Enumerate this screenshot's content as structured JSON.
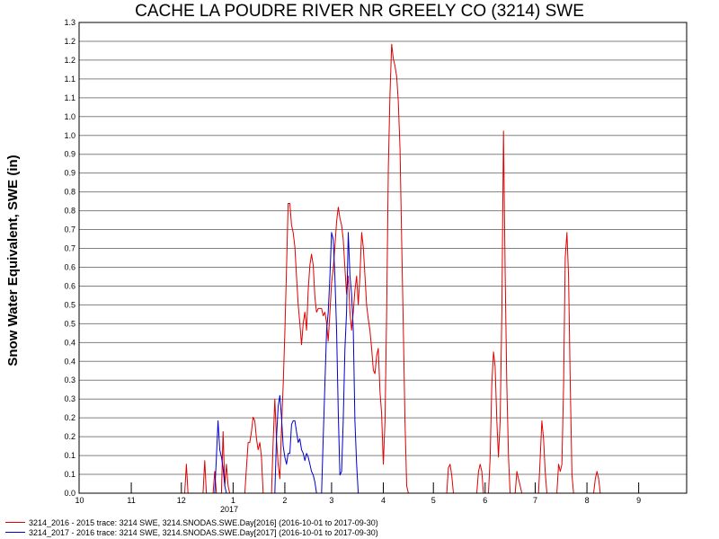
{
  "chart_data": {
    "type": "line",
    "title": "CACHE LA POUDRE RIVER NR GREELY CO (3214) SWE",
    "ylabel": "Snow Water Equivalent, SWE (in)",
    "xlabel": "",
    "x_axis": {
      "tick_labels": [
        "10",
        "11",
        "12",
        "1",
        "2",
        "3",
        "4",
        "5",
        "6",
        "7",
        "8",
        "9"
      ],
      "year_label": "2017",
      "range": [
        "2016-10-01",
        "2017-09-30"
      ]
    },
    "y_axis": {
      "ylim": [
        0,
        1.3
      ],
      "tick_labels": [
        "0.0",
        "0.1",
        "0.1",
        "0.2",
        "0.2",
        "0.3",
        "0.3",
        "0.4",
        "0.4",
        "0.5",
        "0.5",
        "0.6",
        "0.6",
        "0.7",
        "0.7",
        "0.8",
        "0.8",
        "0.9",
        "0.9",
        "1.0",
        "1.0",
        "1.1",
        "1.1",
        "1.2",
        "1.2",
        "1.3"
      ]
    },
    "grid": true,
    "legend_position": "bottom",
    "series": [
      {
        "name": "3214_2016 - 2015 trace: 3214 SWE, 3214.SNODAS.SWE.Day[2016] (2016-10-01 to 2017-09-30)",
        "color": "#e00000",
        "points": [
          [
            0,
            0
          ],
          [
            63,
            0
          ],
          [
            64,
            0.08
          ],
          [
            65,
            0
          ],
          [
            74,
            0
          ],
          [
            75,
            0.09
          ],
          [
            76,
            0
          ],
          [
            80,
            0
          ],
          [
            81,
            0.06
          ],
          [
            82,
            0
          ],
          [
            85,
            0
          ],
          [
            86,
            0.17
          ],
          [
            87,
            0.02
          ],
          [
            88,
            0.08
          ],
          [
            89,
            0.02
          ],
          [
            90,
            0
          ],
          [
            99,
            0
          ],
          [
            100,
            0.07
          ],
          [
            101,
            0.14
          ],
          [
            102,
            0.14
          ],
          [
            103,
            0.17
          ],
          [
            104,
            0.21
          ],
          [
            105,
            0.2
          ],
          [
            106,
            0.15
          ],
          [
            107,
            0.12
          ],
          [
            108,
            0.14
          ],
          [
            109,
            0.1
          ],
          [
            110,
            0
          ],
          [
            115,
            0
          ],
          [
            116,
            0.14
          ],
          [
            117,
            0.26
          ],
          [
            118,
            0.15
          ],
          [
            119,
            0.08
          ],
          [
            120,
            0.04
          ],
          [
            121,
            0.18
          ],
          [
            122,
            0.3
          ],
          [
            123,
            0.44
          ],
          [
            124,
            0.62
          ],
          [
            125,
            0.8
          ],
          [
            126,
            0.8
          ],
          [
            127,
            0.74
          ],
          [
            128,
            0.72
          ],
          [
            129,
            0.68
          ],
          [
            130,
            0.6
          ],
          [
            131,
            0.52
          ],
          [
            132,
            0.47
          ],
          [
            133,
            0.41
          ],
          [
            134,
            0.47
          ],
          [
            135,
            0.5
          ],
          [
            136,
            0.45
          ],
          [
            137,
            0.56
          ],
          [
            138,
            0.63
          ],
          [
            139,
            0.66
          ],
          [
            140,
            0.63
          ],
          [
            141,
            0.54
          ],
          [
            142,
            0.5
          ],
          [
            143,
            0.51
          ],
          [
            144,
            0.51
          ],
          [
            145,
            0.51
          ],
          [
            146,
            0.49
          ],
          [
            147,
            0.5
          ],
          [
            148,
            0.47
          ],
          [
            149,
            0.42
          ],
          [
            150,
            0.5
          ],
          [
            151,
            0.58
          ],
          [
            152,
            0.62
          ],
          [
            153,
            0.68
          ],
          [
            154,
            0.75
          ],
          [
            155,
            0.79
          ],
          [
            156,
            0.76
          ],
          [
            157,
            0.74
          ],
          [
            158,
            0.7
          ],
          [
            159,
            0.62
          ],
          [
            160,
            0.55
          ],
          [
            161,
            0.6
          ],
          [
            162,
            0.5
          ],
          [
            163,
            0.45
          ],
          [
            164,
            0.5
          ],
          [
            165,
            0.56
          ],
          [
            166,
            0.6
          ],
          [
            167,
            0.52
          ],
          [
            168,
            0.6
          ],
          [
            169,
            0.72
          ],
          [
            170,
            0.68
          ],
          [
            171,
            0.6
          ],
          [
            172,
            0.52
          ],
          [
            173,
            0.48
          ],
          [
            174,
            0.45
          ],
          [
            175,
            0.4
          ],
          [
            176,
            0.34
          ],
          [
            177,
            0.33
          ],
          [
            178,
            0.38
          ],
          [
            179,
            0.4
          ],
          [
            180,
            0.28
          ],
          [
            181,
            0.22
          ],
          [
            182,
            0.08
          ],
          [
            183,
            0.2
          ],
          [
            184,
            0.5
          ],
          [
            185,
            0.9
          ],
          [
            186,
            1.1
          ],
          [
            187,
            1.24
          ],
          [
            188,
            1.2
          ],
          [
            189,
            1.18
          ],
          [
            190,
            1.15
          ],
          [
            191,
            1.08
          ],
          [
            192,
            0.95
          ],
          [
            193,
            0.7
          ],
          [
            194,
            0.45
          ],
          [
            195,
            0.2
          ],
          [
            196,
            0.02
          ],
          [
            197,
            0
          ],
          [
            220,
            0
          ],
          [
            221,
            0.07
          ],
          [
            222,
            0.08
          ],
          [
            223,
            0.05
          ],
          [
            224,
            0
          ],
          [
            238,
            0
          ],
          [
            239,
            0.06
          ],
          [
            240,
            0.08
          ],
          [
            241,
            0.06
          ],
          [
            242,
            0
          ],
          [
            245,
            0
          ],
          [
            246,
            0.1
          ],
          [
            247,
            0.3
          ],
          [
            248,
            0.39
          ],
          [
            249,
            0.35
          ],
          [
            250,
            0.2
          ],
          [
            251,
            0.1
          ],
          [
            252,
            0.2
          ],
          [
            253,
            0.5
          ],
          [
            254,
            1.0
          ],
          [
            255,
            0.6
          ],
          [
            256,
            0.3
          ],
          [
            257,
            0.1
          ],
          [
            258,
            0
          ],
          [
            261,
            0
          ],
          [
            262,
            0.06
          ],
          [
            263,
            0.04
          ],
          [
            264,
            0.02
          ],
          [
            265,
            0
          ],
          [
            275,
            0
          ],
          [
            276,
            0.1
          ],
          [
            277,
            0.2
          ],
          [
            278,
            0.15
          ],
          [
            279,
            0.06
          ],
          [
            280,
            0
          ],
          [
            286,
            0
          ],
          [
            287,
            0.08
          ],
          [
            288,
            0.06
          ],
          [
            289,
            0.08
          ],
          [
            290,
            0.3
          ],
          [
            291,
            0.65
          ],
          [
            292,
            0.72
          ],
          [
            293,
            0.6
          ],
          [
            294,
            0.3
          ],
          [
            295,
            0.05
          ],
          [
            296,
            0
          ],
          [
            308,
            0
          ],
          [
            309,
            0.04
          ],
          [
            310,
            0.06
          ],
          [
            311,
            0.04
          ],
          [
            312,
            0
          ],
          [
            364,
            0
          ]
        ]
      },
      {
        "name": "3214_2017 - 2016 trace: 3214 SWE, 3214.SNODAS.SWE.Day[2017] (2016-10-01 to 2017-09-30)",
        "color": "#0000cc",
        "points": [
          [
            81,
            0
          ],
          [
            82,
            0.1
          ],
          [
            83,
            0.2
          ],
          [
            84,
            0.12
          ],
          [
            85,
            0.1
          ],
          [
            86,
            0.07
          ],
          [
            87,
            0.02
          ],
          [
            88,
            0
          ],
          [
            117,
            0
          ],
          [
            118,
            0.15
          ],
          [
            119,
            0.24
          ],
          [
            120,
            0.27
          ],
          [
            121,
            0.21
          ],
          [
            122,
            0.13
          ],
          [
            123,
            0.1
          ],
          [
            124,
            0.08
          ],
          [
            125,
            0.11
          ],
          [
            126,
            0.11
          ],
          [
            127,
            0.19
          ],
          [
            128,
            0.2
          ],
          [
            129,
            0.2
          ],
          [
            130,
            0.17
          ],
          [
            131,
            0.14
          ],
          [
            132,
            0.15
          ],
          [
            133,
            0.12
          ],
          [
            134,
            0.11
          ],
          [
            135,
            0.09
          ],
          [
            136,
            0.11
          ],
          [
            137,
            0.1
          ],
          [
            138,
            0.08
          ],
          [
            139,
            0.06
          ],
          [
            140,
            0.05
          ],
          [
            141,
            0.03
          ],
          [
            142,
            0
          ],
          [
            145,
            0
          ],
          [
            146,
            0.15
          ],
          [
            147,
            0.3
          ],
          [
            148,
            0.45
          ],
          [
            149,
            0.5
          ],
          [
            150,
            0.6
          ],
          [
            151,
            0.72
          ],
          [
            152,
            0.7
          ],
          [
            153,
            0.6
          ],
          [
            154,
            0.45
          ],
          [
            155,
            0.22
          ],
          [
            156,
            0.05
          ],
          [
            157,
            0.06
          ],
          [
            158,
            0.2
          ],
          [
            159,
            0.4
          ],
          [
            160,
            0.5
          ],
          [
            161,
            0.72
          ],
          [
            162,
            0.6
          ],
          [
            163,
            0.55
          ],
          [
            164,
            0.45
          ],
          [
            165,
            0.2
          ],
          [
            166,
            0.08
          ],
          [
            167,
            0
          ]
        ]
      }
    ]
  },
  "legend": {
    "items": [
      {
        "label": "3214_2016 - 2015 trace: 3214 SWE, 3214.SNODAS.SWE.Day[2016] (2016-10-01 to 2017-09-30)",
        "color": "#e00000"
      },
      {
        "label": "3214_2017 - 2016 trace: 3214 SWE, 3214.SNODAS.SWE.Day[2017] (2016-10-01 to 2017-09-30)",
        "color": "#0000cc"
      }
    ]
  }
}
